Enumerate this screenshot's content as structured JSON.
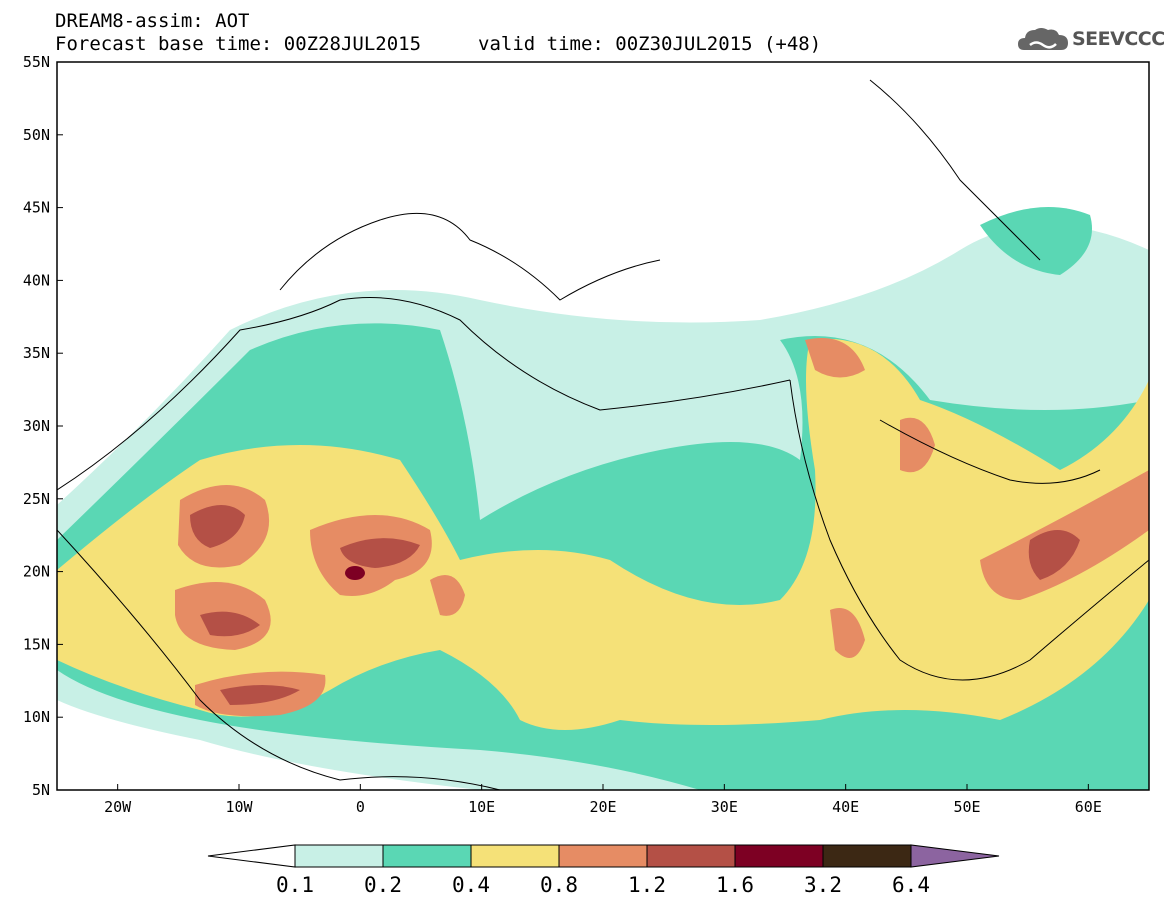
{
  "header": {
    "line1": "DREAM8-assim: AOT",
    "line2": "Forecast base time: 00Z28JUL2015",
    "line3": "valid time: 00Z30JUL2015 (+48)",
    "logo_text": "SEEVCCC",
    "logo_icon": "cloud-icon"
  },
  "map": {
    "lat_labels": [
      "55N",
      "50N",
      "45N",
      "40N",
      "35N",
      "30N",
      "25N",
      "20N",
      "15N",
      "10N",
      "5N"
    ],
    "lon_labels": [
      "20W",
      "10W",
      "0",
      "10E",
      "20E",
      "30E",
      "40E",
      "50E",
      "60E"
    ],
    "lat_range": [
      5,
      55
    ],
    "lon_range": [
      -25,
      65
    ]
  },
  "colorbar": {
    "labels": [
      "0.1",
      "0.2",
      "0.4",
      "0.8",
      "1.2",
      "1.6",
      "3.2",
      "6.4"
    ],
    "colors": [
      "#c8f0e6",
      "#5ad7b4",
      "#f5e178",
      "#e68c64",
      "#b45046",
      "#7d0023",
      "#3c2814",
      "#8c64a0"
    ]
  }
}
